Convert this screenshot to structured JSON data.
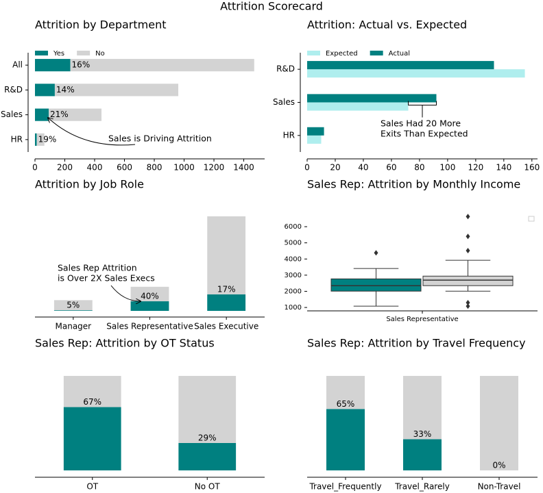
{
  "title": "Attrition Scorecard",
  "chart_data": [
    {
      "type": "bar",
      "orientation": "horizontal",
      "stacked": true,
      "title": "Attrition by Department",
      "categories": [
        "All",
        "R&D",
        "Sales",
        "HR"
      ],
      "series": [
        {
          "name": "Yes",
          "color": "#008080",
          "values": [
            237,
            133,
            92,
            12
          ]
        },
        {
          "name": "No",
          "color": "#d3d3d3",
          "values": [
            1233,
            828,
            354,
            51
          ]
        }
      ],
      "bar_labels": [
        "16%",
        "14%",
        "21%",
        "19%"
      ],
      "xlim": [
        0,
        1540
      ],
      "xticks": [
        0,
        200,
        400,
        600,
        800,
        1000,
        1200,
        1400
      ],
      "legend": "upper left",
      "annotation": [
        "Sales is Driving Attrition"
      ]
    },
    {
      "type": "bar",
      "orientation": "horizontal",
      "stacked": false,
      "title": "Attrition: Actual vs. Expected",
      "categories": [
        "R&D",
        "Sales",
        "HR"
      ],
      "series": [
        {
          "name": "Expected",
          "color": "#afeeee",
          "values": [
            155,
            72,
            10
          ]
        },
        {
          "name": "Actual",
          "color": "#008080",
          "values": [
            133,
            92,
            12
          ]
        }
      ],
      "xlim": [
        0,
        164
      ],
      "xticks": [
        0,
        20,
        40,
        60,
        80,
        100,
        120,
        140,
        160
      ],
      "legend": "upper left",
      "annotation": [
        "Sales Had 20 More",
        "Exits Than Expected"
      ]
    },
    {
      "type": "bar",
      "orientation": "vertical",
      "stacked": true,
      "title": "Attrition by Job Role",
      "categories": [
        "Manager",
        "Sales Representative",
        "Sales Executive"
      ],
      "series": [
        {
          "color": "#008080",
          "values": [
            2,
            33,
            57
          ]
        },
        {
          "color": "#d3d3d3",
          "values": [
            35,
            50,
            269
          ]
        }
      ],
      "bar_labels": [
        "5%",
        "40%",
        "17%"
      ],
      "ylim": [
        0,
        340
      ],
      "annotation": [
        "Sales Rep Attrition",
        "is Over 2X Sales Execs"
      ]
    },
    {
      "type": "box",
      "title": "Sales Rep: Attrition by Monthly Income",
      "categories": [
        "Sales Representative"
      ],
      "series": [
        {
          "color": "#008080",
          "whislo": 1080,
          "q1": 2010,
          "med": 2350,
          "q3": 2770,
          "whishi": 3410,
          "fliers": [
            4380
          ]
        },
        {
          "color": "#d3d3d3",
          "whislo": 2010,
          "q1": 2350,
          "med": 2690,
          "q3": 2940,
          "whishi": 3920,
          "fliers": [
            6630,
            5400,
            4520,
            1300,
            1080
          ]
        }
      ],
      "ylim": [
        790,
        6850
      ],
      "yticks": [
        1000,
        2000,
        3000,
        4000,
        5000,
        6000
      ],
      "legend": "upper right"
    },
    {
      "type": "bar",
      "orientation": "vertical",
      "stacked": true,
      "title": "Sales Rep: Attrition by OT Status",
      "categories": [
        "OT",
        "No OT"
      ],
      "series": [
        {
          "color": "#008080",
          "values": [
            67,
            29
          ],
          "value_labels": [
            "67%",
            "29%"
          ]
        },
        {
          "color": "#d3d3d3",
          "values": [
            33,
            71
          ]
        }
      ],
      "ylim": [
        0,
        100
      ]
    },
    {
      "type": "bar",
      "orientation": "vertical",
      "stacked": true,
      "title": "Sales Rep: Attrition by Travel Frequency",
      "categories": [
        "Travel_Frequently",
        "Travel_Rarely",
        "Non-Travel"
      ],
      "series": [
        {
          "color": "#008080",
          "values": [
            65,
            33,
            0
          ],
          "value_labels": [
            "65%",
            "33%",
            "0%"
          ]
        },
        {
          "color": "#d3d3d3",
          "values": [
            35,
            67,
            100
          ]
        }
      ],
      "ylim": [
        0,
        100
      ]
    }
  ]
}
